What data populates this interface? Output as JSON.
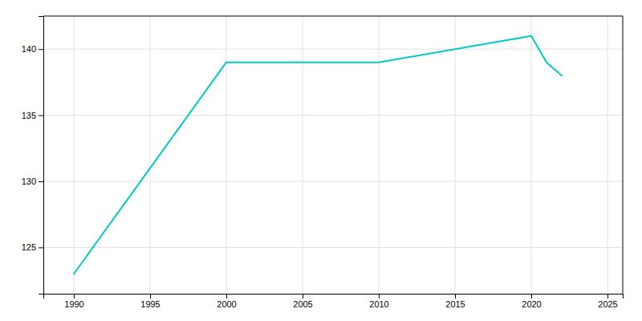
{
  "chart_data": {
    "type": "line",
    "x": [
      1990,
      2000,
      2010,
      2020,
      2021,
      2022
    ],
    "values": [
      123,
      139,
      139,
      141,
      139,
      138
    ],
    "color": "#00c8c8",
    "xlim": [
      1988,
      2026
    ],
    "ylim": [
      121.5,
      142.5
    ],
    "xticks": [
      1990,
      1995,
      2000,
      2005,
      2010,
      2015,
      2020,
      2025
    ],
    "yticks": [
      125,
      130,
      135,
      140
    ],
    "grid": true
  }
}
